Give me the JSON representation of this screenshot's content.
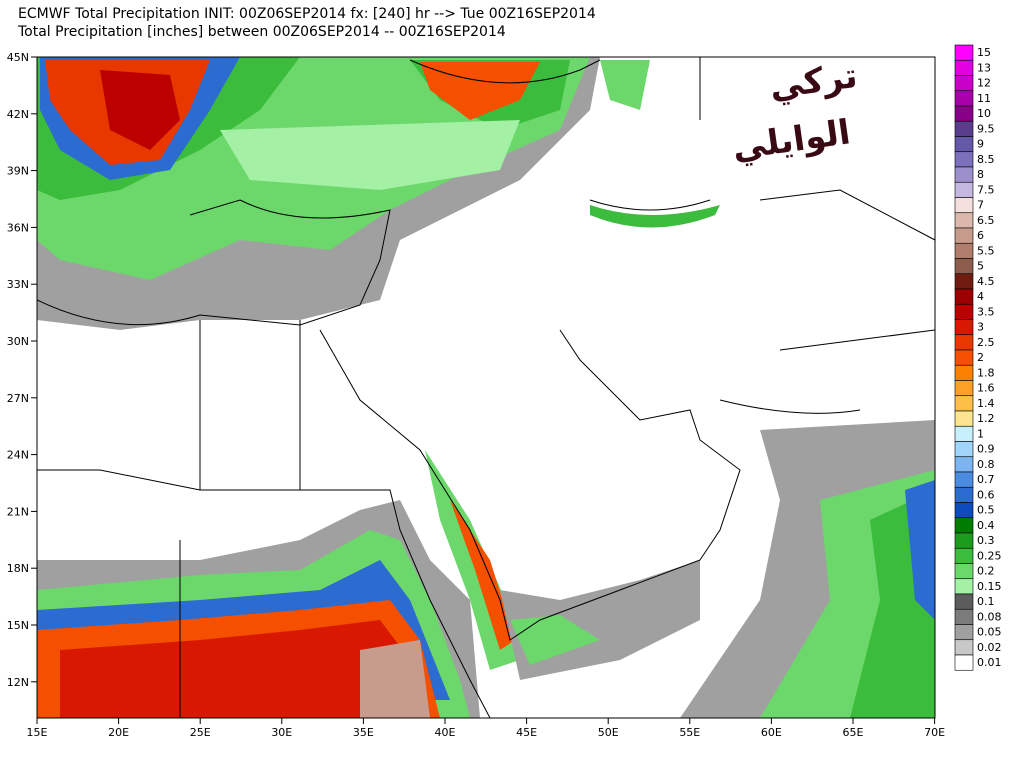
{
  "header": {
    "line1": "ECMWF Total Precipitation INIT: 00Z06SEP2014 fx: [240] hr --> Tue 00Z16SEP2014",
    "line2": "Total Precipitation [inches] between 00Z06SEP2014 -- 00Z16SEP2014"
  },
  "latitude_labels": [
    "45N",
    "42N",
    "39N",
    "36N",
    "33N",
    "30N",
    "27N",
    "24N",
    "21N",
    "18N",
    "15N",
    "12N"
  ],
  "longitude_labels": [
    "15E",
    "20E",
    "25E",
    "30E",
    "35E",
    "40E",
    "45E",
    "50E",
    "55E",
    "60E",
    "65E",
    "70E"
  ],
  "watermark": {
    "line1": "تركي",
    "line2": "الوايلي"
  },
  "colorbar": [
    {
      "label": "15",
      "color": "#ff00ff"
    },
    {
      "label": "13",
      "color": "#e000e0"
    },
    {
      "label": "12",
      "color": "#c800c8"
    },
    {
      "label": "11",
      "color": "#a800a8"
    },
    {
      "label": "10",
      "color": "#880088"
    },
    {
      "label": "9.5",
      "color": "#5a3c8c"
    },
    {
      "label": "9",
      "color": "#6458a8"
    },
    {
      "label": "8.5",
      "color": "#7c70bc"
    },
    {
      "label": "8",
      "color": "#9c90cc"
    },
    {
      "label": "7.5",
      "color": "#c4b8e0"
    },
    {
      "label": "7",
      "color": "#f4e0dc"
    },
    {
      "label": "6.5",
      "color": "#dcb8ac"
    },
    {
      "label": "6",
      "color": "#c89c8c"
    },
    {
      "label": "5.5",
      "color": "#b07c6c"
    },
    {
      "label": "5",
      "color": "#8c5c4c"
    },
    {
      "label": "4.5",
      "color": "#701c10"
    },
    {
      "label": "4",
      "color": "#9c0000"
    },
    {
      "label": "3.5",
      "color": "#bc0000"
    },
    {
      "label": "3",
      "color": "#d81800"
    },
    {
      "label": "2.5",
      "color": "#e83800"
    },
    {
      "label": "2",
      "color": "#f45000"
    },
    {
      "label": "1.8",
      "color": "#fc8000"
    },
    {
      "label": "1.6",
      "color": "#fca028"
    },
    {
      "label": "1.4",
      "color": "#fcc048"
    },
    {
      "label": "1.2",
      "color": "#fce490"
    },
    {
      "label": "1",
      "color": "#c8f0fc"
    },
    {
      "label": "0.9",
      "color": "#a0d4f8"
    },
    {
      "label": "0.8",
      "color": "#7cb4f0"
    },
    {
      "label": "0.7",
      "color": "#4c8ce0"
    },
    {
      "label": "0.6",
      "color": "#2c6cd0"
    },
    {
      "label": "0.5",
      "color": "#0c4cbc"
    },
    {
      "label": "0.4",
      "color": "#007c00"
    },
    {
      "label": "0.3",
      "color": "#1c9c1c"
    },
    {
      "label": "0.25",
      "color": "#3cbc3c"
    },
    {
      "label": "0.2",
      "color": "#6cd86c"
    },
    {
      "label": "0.15",
      "color": "#a4f0a4"
    },
    {
      "label": "0.1",
      "color": "#5c5c5c"
    },
    {
      "label": "0.08",
      "color": "#7c7c7c"
    },
    {
      "label": "0.05",
      "color": "#a0a0a0"
    },
    {
      "label": "0.02",
      "color": "#c8c8c8"
    },
    {
      "label": "0.01",
      "color": "#ffffff"
    }
  ]
}
